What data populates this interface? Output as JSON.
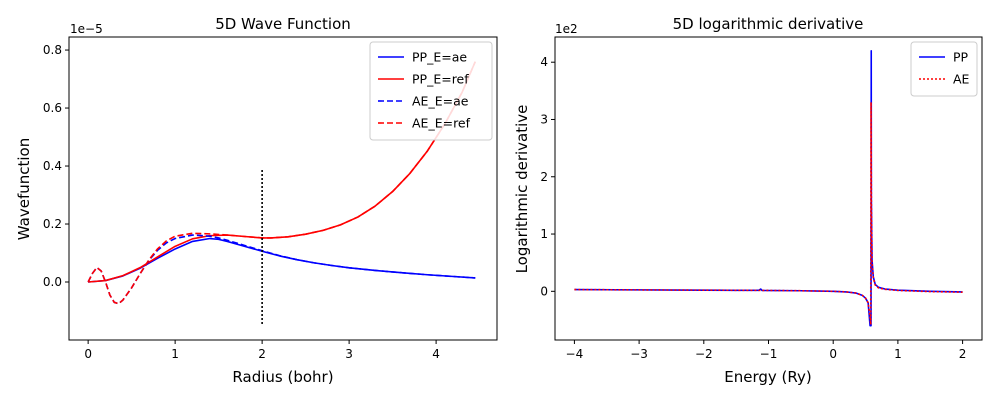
{
  "chart_data": [
    {
      "type": "line",
      "title": "5D Wave Function",
      "xlabel": "Radius (bohr)",
      "ylabel": "Wavefunction",
      "y_offset_text": "1e−5",
      "xlim": [
        -0.22,
        4.7
      ],
      "ylim": [
        -0.2,
        0.845
      ],
      "xticks": [
        0,
        1,
        2,
        3,
        4
      ],
      "yticks": [
        0.0,
        0.2,
        0.4,
        0.6,
        0.8
      ],
      "xtick_labels": [
        "0",
        "1",
        "2",
        "3",
        "4"
      ],
      "ytick_labels": [
        "0.0",
        "0.2",
        "0.4",
        "0.6",
        "0.8"
      ],
      "legend_position": "top-right",
      "series": [
        {
          "name": "PP_E=ae",
          "color": "#0000ff",
          "style": "solid",
          "x": [
            0,
            0.2,
            0.4,
            0.6,
            0.8,
            1.0,
            1.2,
            1.4,
            1.5,
            1.6,
            1.8,
            2.0,
            2.2,
            2.4,
            2.6,
            2.8,
            3.0,
            3.3,
            3.6,
            3.9,
            4.2,
            4.45
          ],
          "y": [
            0,
            0.005,
            0.021,
            0.048,
            0.082,
            0.114,
            0.14,
            0.15,
            0.147,
            0.14,
            0.123,
            0.106,
            0.09,
            0.077,
            0.066,
            0.057,
            0.049,
            0.04,
            0.032,
            0.025,
            0.019,
            0.014
          ]
        },
        {
          "name": "PP_E=ref",
          "color": "#ff0000",
          "style": "solid",
          "x": [
            0,
            0.2,
            0.4,
            0.6,
            0.8,
            1.0,
            1.2,
            1.4,
            1.6,
            1.8,
            2.0,
            2.1,
            2.3,
            2.5,
            2.7,
            2.9,
            3.1,
            3.3,
            3.5,
            3.7,
            3.9,
            4.1,
            4.3,
            4.45
          ],
          "y": [
            0,
            0.005,
            0.022,
            0.05,
            0.087,
            0.123,
            0.149,
            0.16,
            0.162,
            0.157,
            0.152,
            0.152,
            0.156,
            0.165,
            0.178,
            0.197,
            0.224,
            0.262,
            0.312,
            0.375,
            0.452,
            0.545,
            0.655,
            0.76
          ]
        },
        {
          "name": "AE_E=ae",
          "color": "#0000ff",
          "style": "dashed",
          "x": [
            0,
            0.05,
            0.1,
            0.15,
            0.2,
            0.25,
            0.3,
            0.35,
            0.4,
            0.5,
            0.6,
            0.7,
            0.8,
            0.9,
            1.0,
            1.2,
            1.4,
            1.5,
            1.6,
            1.8,
            2.0,
            2.2,
            2.4,
            2.6,
            2.8,
            3.0,
            3.3,
            3.6,
            3.9,
            4.2,
            4.45
          ],
          "y": [
            0,
            0.03,
            0.05,
            0.038,
            0.0,
            -0.045,
            -0.07,
            -0.075,
            -0.062,
            -0.02,
            0.03,
            0.075,
            0.11,
            0.135,
            0.15,
            0.162,
            0.158,
            0.152,
            0.144,
            0.126,
            0.108,
            0.091,
            0.077,
            0.066,
            0.057,
            0.049,
            0.04,
            0.032,
            0.025,
            0.019,
            0.014
          ]
        },
        {
          "name": "AE_E=ref",
          "color": "#ff0000",
          "style": "dashed",
          "x": [
            0,
            0.05,
            0.1,
            0.15,
            0.2,
            0.25,
            0.3,
            0.35,
            0.4,
            0.5,
            0.6,
            0.7,
            0.8,
            0.9,
            1.0,
            1.2,
            1.4,
            1.6,
            1.8,
            2.0,
            2.1,
            2.3,
            2.5,
            2.7,
            2.9,
            3.1,
            3.3,
            3.5,
            3.7,
            3.9,
            4.1,
            4.3,
            4.45
          ],
          "y": [
            0,
            0.03,
            0.05,
            0.038,
            0.0,
            -0.045,
            -0.07,
            -0.075,
            -0.062,
            -0.02,
            0.03,
            0.077,
            0.115,
            0.142,
            0.158,
            0.168,
            0.166,
            0.162,
            0.157,
            0.152,
            0.152,
            0.156,
            0.165,
            0.178,
            0.197,
            0.224,
            0.262,
            0.312,
            0.375,
            0.452,
            0.545,
            0.655,
            0.76
          ]
        },
        {
          "name": "",
          "color": "#000000",
          "style": "dotted",
          "x": [
            2.0,
            2.0
          ],
          "y": [
            -0.145,
            0.39
          ]
        }
      ]
    },
    {
      "type": "line",
      "title": "5D logarithmic derivative",
      "xlabel": "Energy (Ry)",
      "ylabel": "Logarithmic derivative",
      "y_offset_text": "1e2",
      "xlim": [
        -4.3,
        2.3
      ],
      "ylim": [
        -0.85,
        4.44
      ],
      "xticks": [
        -4,
        -3,
        -2,
        -1,
        0,
        1,
        2
      ],
      "yticks": [
        0,
        1,
        2,
        3,
        4
      ],
      "xtick_labels": [
        "−4",
        "−3",
        "−2",
        "−1",
        "0",
        "1",
        "2"
      ],
      "ytick_labels": [
        "0",
        "1",
        "2",
        "3",
        "4"
      ],
      "legend_position": "top-right",
      "series": [
        {
          "name": "PP",
          "color": "#0000ff",
          "style": "solid",
          "x": [
            -4.0,
            -3.0,
            -2.0,
            -1.5,
            -1.15,
            -1.12,
            -1.1,
            -0.5,
            0.0,
            0.2,
            0.35,
            0.45,
            0.5,
            0.54,
            0.57,
            0.585,
            0.588,
            0.59,
            0.6,
            0.62,
            0.65,
            0.7,
            0.8,
            1.0,
            1.5,
            2.0
          ],
          "y": [
            0.03,
            0.025,
            0.02,
            0.018,
            0.017,
            0.04,
            0.016,
            0.01,
            0.0,
            -0.01,
            -0.03,
            -0.07,
            -0.12,
            -0.2,
            -0.6,
            -0.6,
            4.2,
            1.6,
            0.55,
            0.25,
            0.12,
            0.07,
            0.04,
            0.02,
            0.0,
            -0.01
          ]
        },
        {
          "name": "AE",
          "color": "#ff0000",
          "style": "dotted",
          "x": [
            -4.0,
            -3.0,
            -2.0,
            -1.5,
            -1.1,
            -0.5,
            0.0,
            0.2,
            0.35,
            0.45,
            0.5,
            0.54,
            0.57,
            0.58,
            0.585,
            0.59,
            0.6,
            0.62,
            0.65,
            0.7,
            0.8,
            1.0,
            1.5,
            2.0
          ],
          "y": [
            0.03,
            0.025,
            0.02,
            0.018,
            0.016,
            0.01,
            0.0,
            -0.01,
            -0.03,
            -0.07,
            -0.12,
            -0.2,
            -0.45,
            -0.58,
            3.3,
            1.5,
            0.5,
            0.23,
            0.11,
            0.06,
            0.035,
            0.015,
            -0.005,
            -0.015
          ]
        }
      ]
    }
  ]
}
